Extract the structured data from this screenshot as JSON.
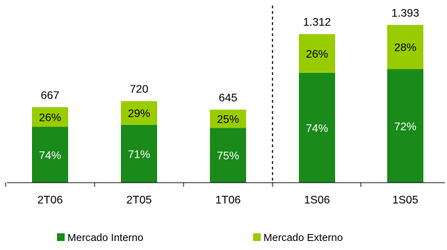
{
  "chart_data": {
    "type": "bar",
    "stacked": true,
    "categories": [
      "2T06",
      "2T05",
      "1T06",
      "1S06",
      "1S05"
    ],
    "totals": [
      667,
      720,
      645,
      1312,
      1393
    ],
    "total_labels": [
      "667",
      "720",
      "645",
      "1.312",
      "1.393"
    ],
    "separator_after_category": "1T06",
    "separator_style": "dashed",
    "series": [
      {
        "name": "Mercado Interno",
        "color": "#1a8a1a",
        "shares": [
          0.74,
          0.71,
          0.75,
          0.74,
          0.72
        ],
        "labels": [
          "74%",
          "71%",
          "75%",
          "74%",
          "72%"
        ]
      },
      {
        "name": "Mercado Externo",
        "color": "#99cc00",
        "shares": [
          0.26,
          0.29,
          0.25,
          0.26,
          0.28
        ],
        "labels": [
          "26%",
          "29%",
          "25%",
          "26%",
          "28%"
        ]
      }
    ],
    "ylim": [
      0,
      1400
    ],
    "y_axis_visible": false,
    "grid": false,
    "legend_position": "bottom"
  }
}
